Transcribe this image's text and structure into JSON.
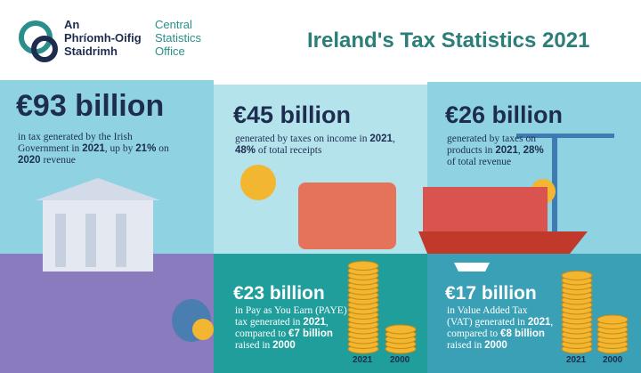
{
  "logo": {
    "irish": [
      "An",
      "Phríomh-Oifig",
      "Staidrimh"
    ],
    "english": [
      "Central",
      "Statistics",
      "Office"
    ]
  },
  "title": "Ireland's Tax Statistics 2021",
  "panels": [
    {
      "headline": "€93 billion",
      "text": [
        {
          "t": "in tax generated by the Irish Government in "
        },
        {
          "t": "2021",
          "b": true
        },
        {
          "t": ", up by "
        },
        {
          "t": "21%",
          "b": true
        },
        {
          "t": " on "
        },
        {
          "t": "2020",
          "b": true
        },
        {
          "t": " revenue"
        }
      ]
    },
    {
      "headline": "€45 billion",
      "text": [
        {
          "t": "generated by taxes on income in "
        },
        {
          "t": "2021",
          "b": true
        },
        {
          "t": ", "
        },
        {
          "t": "48%",
          "b": true
        },
        {
          "t": " of total receipts"
        }
      ]
    },
    {
      "headline": "€26 billion",
      "text": [
        {
          "t": "generated by taxes on products in "
        },
        {
          "t": "2021",
          "b": true
        },
        {
          "t": ", "
        },
        {
          "t": "28%",
          "b": true
        },
        {
          "t": " of total revenue"
        }
      ]
    }
  ],
  "details": [
    {
      "headline": "€23 billion",
      "text": [
        {
          "t": "in Pay as You Earn (PAYE) tax generated in "
        },
        {
          "t": "2021",
          "b": true
        },
        {
          "t": ", compared to "
        },
        {
          "t": "€7 billion",
          "b": true
        },
        {
          "t": " raised in "
        },
        {
          "t": "2000",
          "b": true
        }
      ],
      "years": [
        "2021",
        "2000"
      ]
    },
    {
      "headline": "€17 billion",
      "text": [
        {
          "t": "in Value Added Tax (VAT) generated in "
        },
        {
          "t": "2021",
          "b": true
        },
        {
          "t": ", compared to "
        },
        {
          "t": "€8 billion",
          "b": true
        },
        {
          "t": " raised in "
        },
        {
          "t": "2000",
          "b": true
        }
      ],
      "years": [
        "2021",
        "2000"
      ]
    }
  ]
}
